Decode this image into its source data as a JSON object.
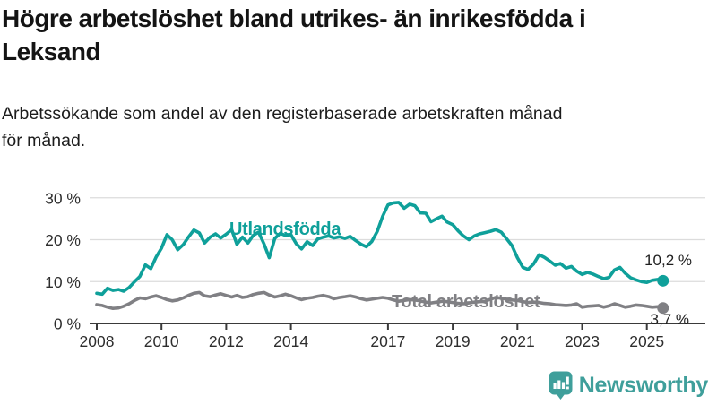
{
  "header": {
    "title_line1": "Högre arbetslöshet bland utrikes- än inrikesfödda i",
    "title_line2": "Leksand",
    "subtitle_line1": "Arbetssökande som andel av den registerbaserade arbetskraften månad",
    "subtitle_line2": "för månad."
  },
  "footer": {
    "brand": "Newsworthy",
    "brand_color": "#3f9f9b"
  },
  "chart_data": {
    "type": "line",
    "title": "Högre arbetslöshet bland utrikes- än inrikesfödda i Leksand",
    "subtitle": "Arbetssökande som andel av den registerbaserade arbetskraften månad för månad.",
    "xlabel": "",
    "ylabel": "",
    "xlim": [
      2007.85,
      2025.9
    ],
    "ylim": [
      0,
      32
    ],
    "grid": "horizontal",
    "legend_position": "inline-labels",
    "y_ticks": [
      {
        "value": 0,
        "label": "0 %"
      },
      {
        "value": 10,
        "label": "10 %"
      },
      {
        "value": 20,
        "label": "20 %"
      },
      {
        "value": 30,
        "label": "30 %"
      }
    ],
    "x_ticks": [
      {
        "value": 2008,
        "label": "2008"
      },
      {
        "value": 2010,
        "label": "2010"
      },
      {
        "value": 2012,
        "label": "2012"
      },
      {
        "value": 2014,
        "label": "2014"
      },
      {
        "value": 2017,
        "label": "2017"
      },
      {
        "value": 2019,
        "label": "2019"
      },
      {
        "value": 2021,
        "label": "2021"
      },
      {
        "value": 2023,
        "label": "2023"
      },
      {
        "value": 2025,
        "label": "2025"
      }
    ],
    "x": [
      2008,
      2008.17,
      2008.33,
      2008.5,
      2008.67,
      2008.83,
      2009,
      2009.17,
      2009.33,
      2009.5,
      2009.67,
      2009.83,
      2010,
      2010.17,
      2010.33,
      2010.5,
      2010.67,
      2010.83,
      2011,
      2011.17,
      2011.33,
      2011.5,
      2011.67,
      2011.83,
      2012,
      2012.17,
      2012.33,
      2012.5,
      2012.67,
      2012.83,
      2013,
      2013.17,
      2013.33,
      2013.5,
      2013.67,
      2013.83,
      2014,
      2014.17,
      2014.33,
      2014.5,
      2014.67,
      2014.83,
      2015,
      2015.17,
      2015.33,
      2015.5,
      2015.67,
      2015.83,
      2016,
      2016.17,
      2016.33,
      2016.5,
      2016.67,
      2016.83,
      2017,
      2017.17,
      2017.33,
      2017.5,
      2017.67,
      2017.83,
      2018,
      2018.17,
      2018.33,
      2018.5,
      2018.67,
      2018.83,
      2019,
      2019.17,
      2019.33,
      2019.5,
      2019.67,
      2019.83,
      2020,
      2020.17,
      2020.33,
      2020.5,
      2020.67,
      2020.83,
      2021,
      2021.17,
      2021.33,
      2021.5,
      2021.67,
      2021.83,
      2022,
      2022.17,
      2022.33,
      2022.5,
      2022.67,
      2022.83,
      2023,
      2023.17,
      2023.33,
      2023.5,
      2023.67,
      2023.83,
      2024,
      2024.17,
      2024.33,
      2024.5,
      2024.67,
      2024.83,
      2025,
      2025.17,
      2025.33,
      2025.5
    ],
    "series": [
      {
        "name": "Utlandsfödda",
        "color": "#0fa09a",
        "end_label": "10,2 %",
        "end_value": 10.2,
        "values": [
          7.2,
          7.0,
          8.4,
          7.9,
          8.1,
          7.7,
          8.6,
          10.0,
          11.2,
          14.0,
          13.1,
          15.8,
          18.0,
          21.2,
          20.0,
          17.6,
          18.8,
          20.6,
          22.3,
          21.6,
          19.2,
          20.6,
          21.4,
          20.4,
          21.3,
          22.4,
          18.9,
          20.6,
          19.2,
          21.0,
          21.8,
          19.0,
          15.7,
          20.3,
          21.5,
          21.0,
          21.2,
          19.0,
          17.8,
          19.5,
          18.6,
          20.2,
          20.6,
          20.9,
          20.4,
          20.7,
          20.3,
          20.8,
          19.8,
          18.9,
          18.3,
          19.6,
          22.0,
          25.5,
          28.3,
          28.8,
          28.9,
          27.5,
          28.5,
          28.1,
          26.4,
          26.3,
          24.3,
          25.0,
          25.6,
          24.2,
          23.6,
          22.1,
          20.9,
          20.0,
          20.9,
          21.4,
          21.7,
          22.0,
          22.4,
          21.8,
          20.2,
          18.6,
          15.7,
          13.4,
          12.9,
          14.2,
          16.4,
          15.8,
          14.9,
          13.9,
          14.3,
          13.2,
          13.6,
          12.5,
          11.7,
          12.2,
          11.8,
          11.2,
          10.7,
          11.0,
          12.8,
          13.4,
          12.0,
          10.9,
          10.4,
          10.0,
          9.8,
          10.3,
          10.5,
          10.2
        ]
      },
      {
        "name": "Total arbetslöshet",
        "color": "#808084",
        "end_label": "3,7 %",
        "end_value": 3.7,
        "values": [
          4.5,
          4.3,
          3.9,
          3.6,
          3.7,
          4.1,
          4.7,
          5.5,
          6.1,
          5.9,
          6.3,
          6.6,
          6.2,
          5.7,
          5.4,
          5.6,
          6.1,
          6.7,
          7.2,
          7.4,
          6.6,
          6.4,
          6.8,
          7.1,
          6.7,
          6.3,
          6.7,
          6.2,
          6.4,
          6.9,
          7.2,
          7.4,
          6.8,
          6.3,
          6.6,
          7.0,
          6.6,
          6.1,
          5.7,
          6.0,
          6.2,
          6.5,
          6.7,
          6.4,
          5.9,
          6.2,
          6.4,
          6.6,
          6.3,
          5.9,
          5.6,
          5.8,
          6.0,
          6.2,
          6.0,
          5.6,
          5.3,
          5.5,
          5.7,
          5.6,
          5.4,
          5.1,
          4.9,
          5.1,
          5.3,
          5.2,
          5.0,
          4.8,
          4.7,
          4.9,
          5.1,
          5.2,
          5.3,
          5.8,
          6.2,
          6.0,
          5.8,
          5.6,
          5.5,
          5.2,
          5.0,
          5.1,
          5.0,
          4.8,
          4.7,
          4.5,
          4.4,
          4.3,
          4.4,
          4.7,
          3.9,
          4.1,
          4.2,
          4.3,
          3.9,
          4.2,
          4.7,
          4.3,
          3.9,
          4.1,
          4.4,
          4.3,
          4.1,
          3.9,
          4.0,
          3.7
        ]
      }
    ]
  }
}
